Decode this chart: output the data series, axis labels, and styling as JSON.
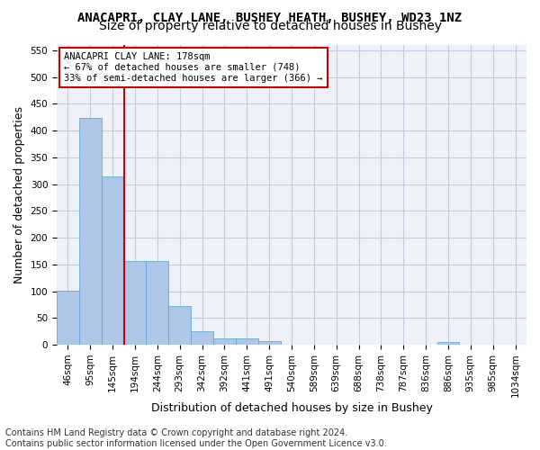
{
  "title1": "ANACAPRI, CLAY LANE, BUSHEY HEATH, BUSHEY, WD23 1NZ",
  "title2": "Size of property relative to detached houses in Bushey",
  "xlabel": "Distribution of detached houses by size in Bushey",
  "ylabel": "Number of detached properties",
  "bar_values": [
    101,
    424,
    315,
    157,
    157,
    73,
    25,
    12,
    12,
    7,
    0,
    0,
    0,
    0,
    0,
    0,
    0,
    5,
    0,
    0,
    0
  ],
  "bar_labels": [
    "46sqm",
    "95sqm",
    "145sqm",
    "194sqm",
    "244sqm",
    "293sqm",
    "342sqm",
    "392sqm",
    "441sqm",
    "491sqm",
    "540sqm",
    "589sqm",
    "639sqm",
    "688sqm",
    "738sqm",
    "787sqm",
    "836sqm",
    "886sqm",
    "935sqm",
    "985sqm",
    "1034sqm"
  ],
  "bar_color": "#aec6e8",
  "bar_edge_color": "#5a9fd4",
  "vline_x": 2.5,
  "vline_color": "#cc0000",
  "annotation_text": "ANACAPRI CLAY LANE: 178sqm\n← 67% of detached houses are smaller (748)\n33% of semi-detached houses are larger (366) →",
  "annotation_box_color": "#ffffff",
  "annotation_box_edge": "#cc0000",
  "ylim": [
    0,
    560
  ],
  "yticks": [
    0,
    50,
    100,
    150,
    200,
    250,
    300,
    350,
    400,
    450,
    500,
    550
  ],
  "grid_color": "#c0cce0",
  "bg_color": "#eef2f8",
  "footer": "Contains HM Land Registry data © Crown copyright and database right 2024.\nContains public sector information licensed under the Open Government Licence v3.0.",
  "title1_fontsize": 10,
  "title2_fontsize": 10,
  "tick_fontsize": 7.5,
  "ylabel_fontsize": 9,
  "xlabel_fontsize": 9,
  "footer_fontsize": 7
}
